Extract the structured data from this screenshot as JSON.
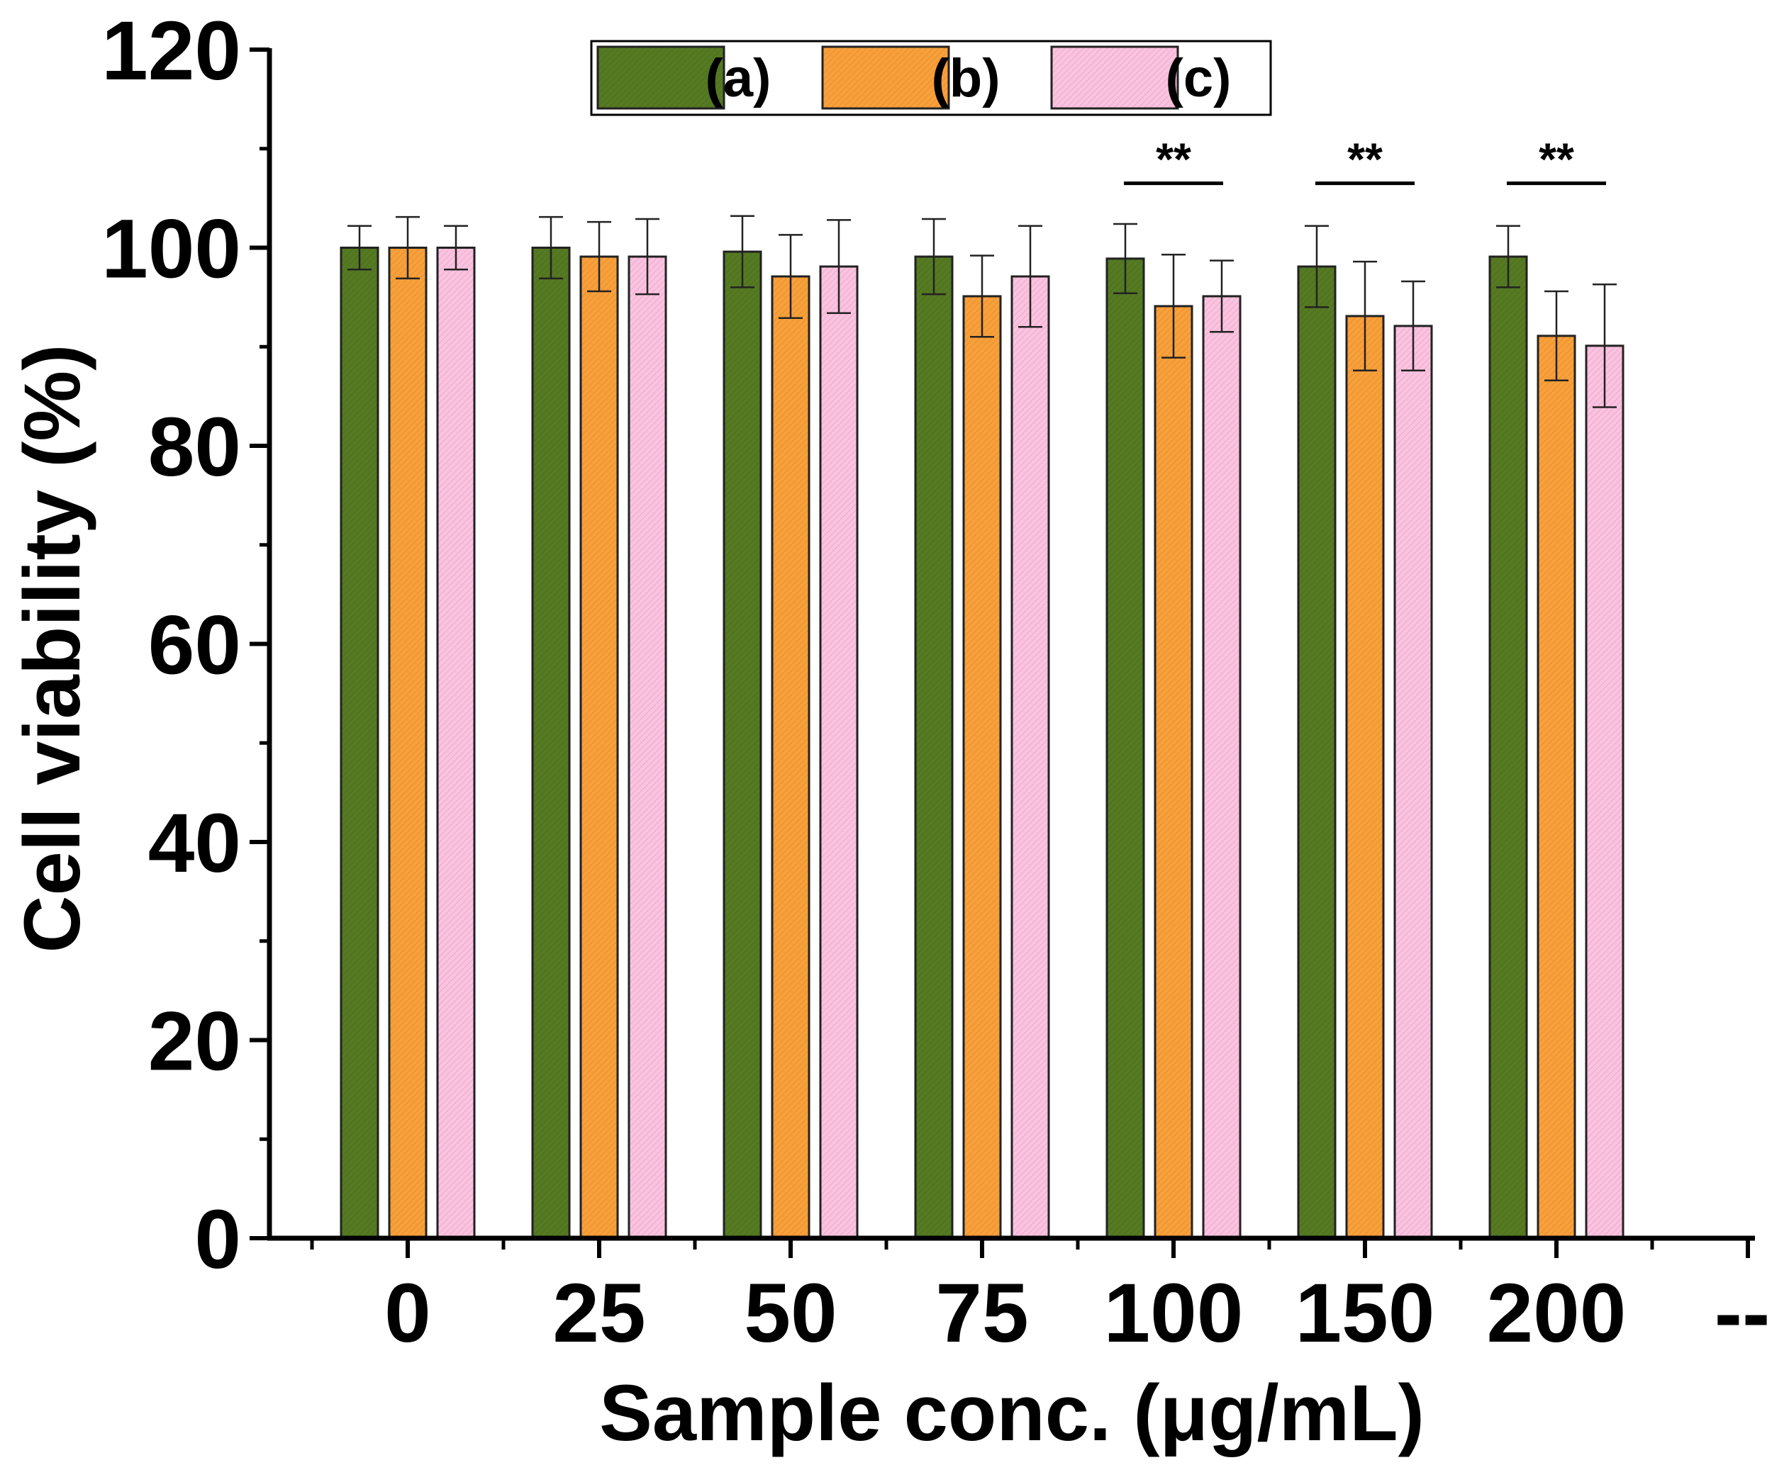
{
  "chart_data": {
    "type": "bar",
    "title": "",
    "xlabel": "Sample conc. (μg/mL)",
    "ylabel": "Cell viability (%)",
    "ylim": [
      0,
      120
    ],
    "yticks": [
      0,
      20,
      40,
      60,
      80,
      100,
      120
    ],
    "ytick_labels": [
      "0",
      "20",
      "40",
      "60",
      "80",
      "100",
      "120"
    ],
    "categories": [
      "0",
      "25",
      "50",
      "75",
      "100",
      "150",
      "200"
    ],
    "extra_tick_label": "--",
    "legend_position": "top-center",
    "series": [
      {
        "name": "(a)",
        "color": "#557a22",
        "values": [
          100,
          100,
          99.6,
          99.1,
          98.9,
          98.1,
          99.1
        ],
        "errors": [
          2.2,
          3.1,
          3.6,
          3.8,
          3.5,
          4.1,
          3.1
        ]
      },
      {
        "name": "(b)",
        "color": "#f9a03a",
        "values": [
          100,
          99.1,
          97.1,
          95.1,
          94.1,
          93.1,
          91.1
        ],
        "errors": [
          3.1,
          3.5,
          4.2,
          4.1,
          5.2,
          5.5,
          4.5
        ]
      },
      {
        "name": "(c)",
        "color": "#fcc2e0",
        "values": [
          100,
          99.1,
          98.1,
          97.1,
          95.1,
          92.1,
          90.1
        ],
        "errors": [
          2.2,
          3.8,
          4.7,
          5.1,
          3.6,
          4.5,
          6.2
        ]
      }
    ],
    "annotations": [
      {
        "category": "100",
        "text": "**",
        "y": 106.5
      },
      {
        "category": "150",
        "text": "**",
        "y": 106.5
      },
      {
        "category": "200",
        "text": "**",
        "y": 106.5
      }
    ]
  }
}
